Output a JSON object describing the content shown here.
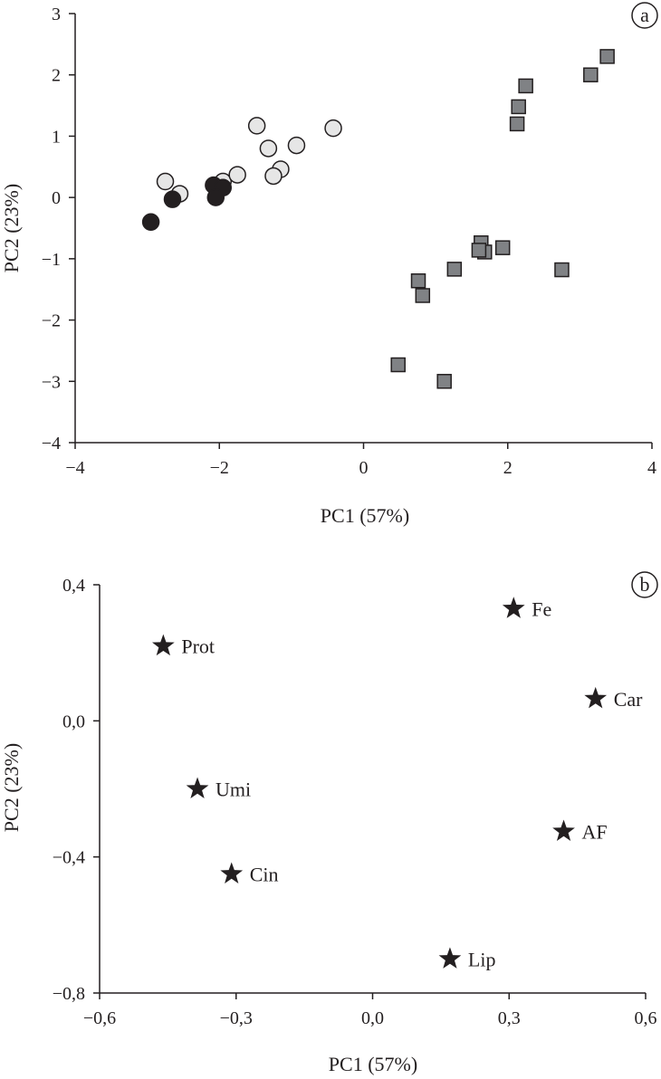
{
  "colors": {
    "black": "#231f20",
    "light_gray": "#e6e6e6",
    "mid_gray": "#808285"
  },
  "chart_data": [
    {
      "type": "scatter",
      "panel_label": "a",
      "xlabel": "PC1 (57%)",
      "ylabel": "PC2 (23%)",
      "xlim": [
        -4,
        4
      ],
      "ylim": [
        -4,
        3
      ],
      "x_ticks": [
        -4,
        -2,
        0,
        2,
        4
      ],
      "x_tick_labels": [
        "−4",
        "−2",
        "0",
        "2",
        "4"
      ],
      "y_ticks": [
        3,
        2,
        1,
        0,
        -1,
        -2,
        -3,
        -4
      ],
      "y_tick_labels": [
        "3",
        "2",
        "1",
        "0",
        "−1",
        "−2",
        "−3",
        "−4"
      ],
      "series": [
        {
          "marker": "circle",
          "fill": "#e6e6e6",
          "points": [
            [
              -2.75,
              0.26
            ],
            [
              -2.55,
              0.06
            ],
            [
              -1.95,
              0.26
            ],
            [
              -1.75,
              0.37
            ],
            [
              -1.48,
              1.17
            ],
            [
              -1.32,
              0.8
            ],
            [
              -1.15,
              0.46
            ],
            [
              -1.25,
              0.35
            ],
            [
              -0.93,
              0.85
            ],
            [
              -0.42,
              1.13
            ]
          ]
        },
        {
          "marker": "circle",
          "fill": "#231f20",
          "points": [
            [
              -2.95,
              -0.4
            ],
            [
              -2.65,
              -0.03
            ],
            [
              -2.08,
              0.2
            ],
            [
              -1.95,
              0.16
            ],
            [
              -2.05,
              0.0
            ]
          ]
        },
        {
          "marker": "square",
          "fill": "#808285",
          "points": [
            [
              3.38,
              2.3
            ],
            [
              3.15,
              2.0
            ],
            [
              2.25,
              1.82
            ],
            [
              2.15,
              1.48
            ],
            [
              2.13,
              1.2
            ],
            [
              1.63,
              -0.74
            ],
            [
              1.68,
              -0.89
            ],
            [
              1.6,
              -0.86
            ],
            [
              1.93,
              -0.82
            ],
            [
              2.75,
              -1.18
            ],
            [
              1.26,
              -1.17
            ],
            [
              0.76,
              -1.36
            ],
            [
              0.82,
              -1.6
            ],
            [
              0.48,
              -2.73
            ],
            [
              1.12,
              -3.0
            ]
          ]
        }
      ]
    },
    {
      "type": "scatter",
      "panel_label": "b",
      "xlabel": "PC1 (57%)",
      "ylabel": "PC2 (23%)",
      "xlim": [
        -0.6,
        0.6
      ],
      "ylim": [
        -0.8,
        0.4
      ],
      "x_ticks": [
        -0.6,
        -0.3,
        0.0,
        0.3,
        0.6
      ],
      "x_tick_labels": [
        "−0,6",
        "−0,3",
        "0,0",
        "0,3",
        "0,6"
      ],
      "y_ticks": [
        0.4,
        0.0,
        -0.4,
        -0.8
      ],
      "y_tick_labels": [
        "0,4",
        "0,0",
        "−0,4",
        "−0,8"
      ],
      "points": [
        {
          "label": "Fe",
          "x": 0.31,
          "y": 0.33
        },
        {
          "label": "Prot",
          "x": -0.46,
          "y": 0.22
        },
        {
          "label": "Car",
          "x": 0.49,
          "y": 0.065
        },
        {
          "label": "Umi",
          "x": -0.385,
          "y": -0.2
        },
        {
          "label": "AF",
          "x": 0.42,
          "y": -0.325
        },
        {
          "label": "Cin",
          "x": -0.31,
          "y": -0.45
        },
        {
          "label": "Lip",
          "x": 0.17,
          "y": -0.7
        }
      ]
    }
  ]
}
